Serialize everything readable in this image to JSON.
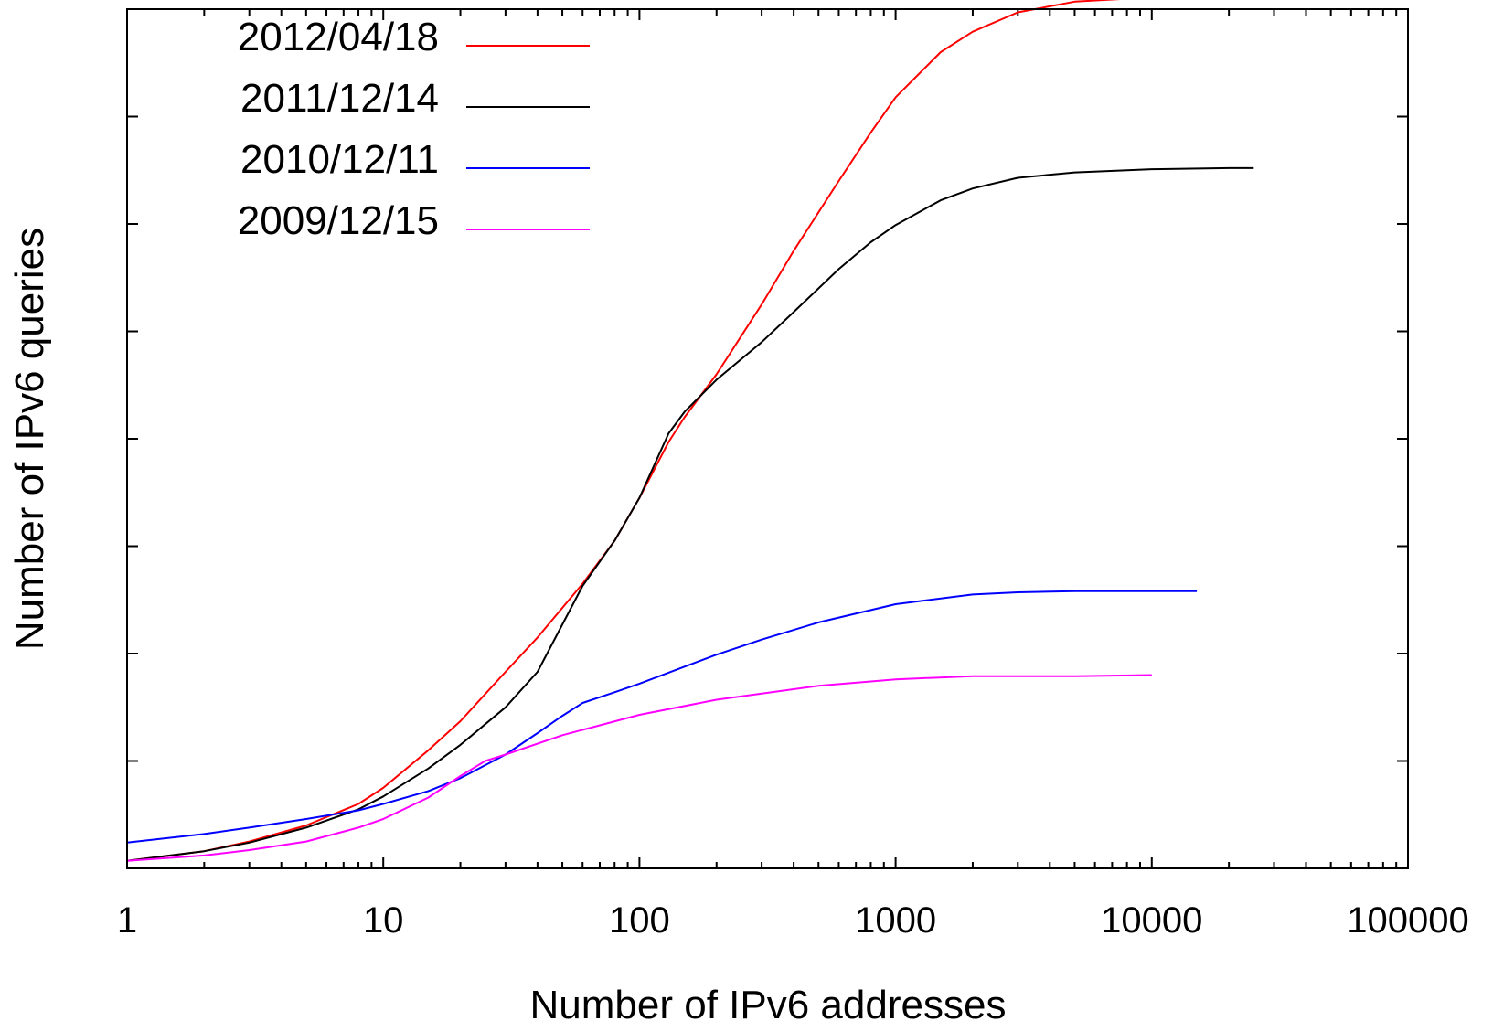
{
  "chart_data": {
    "type": "line",
    "title": "",
    "xlabel": "Number of IPv6 addresses",
    "ylabel": "Number of IPv6 queries",
    "x_scale": "log",
    "xlim": [
      1,
      100000
    ],
    "x_ticks": [
      1,
      10,
      100,
      1000,
      10000,
      100000
    ],
    "x_tick_labels": [
      "1",
      "10",
      "100",
      "1000",
      "10000",
      "100000"
    ],
    "ylim": [
      0,
      8
    ],
    "y_ticks": [
      0,
      1,
      2,
      3,
      4,
      5,
      6,
      7,
      8
    ],
    "y_tick_labels_shown": false,
    "grid": false,
    "legend_position": "top-left",
    "series": [
      {
        "name": "2012/04/18",
        "color": "#ff0000",
        "x": [
          1,
          2,
          3,
          5,
          8,
          10,
          15,
          20,
          30,
          40,
          60,
          80,
          100,
          130,
          150,
          200,
          300,
          400,
          600,
          800,
          1000,
          1500,
          2000,
          3000,
          5000,
          10000,
          20000,
          30000
        ],
        "y": [
          0.07,
          0.16,
          0.25,
          0.4,
          0.6,
          0.75,
          1.1,
          1.37,
          1.83,
          2.15,
          2.65,
          3.05,
          3.45,
          3.97,
          4.2,
          4.6,
          5.25,
          5.75,
          6.4,
          6.85,
          7.18,
          7.6,
          7.79,
          7.97,
          8.07,
          8.11,
          8.12,
          8.12
        ]
      },
      {
        "name": "2011/12/14",
        "color": "#000000",
        "x": [
          1,
          2,
          3,
          5,
          8,
          10,
          15,
          20,
          30,
          40,
          60,
          80,
          100,
          130,
          150,
          200,
          300,
          400,
          600,
          800,
          1000,
          1500,
          2000,
          3000,
          5000,
          10000,
          20000,
          25000
        ],
        "y": [
          0.07,
          0.16,
          0.24,
          0.38,
          0.55,
          0.67,
          0.93,
          1.15,
          1.5,
          1.83,
          2.63,
          3.05,
          3.45,
          4.05,
          4.25,
          4.55,
          4.9,
          5.18,
          5.58,
          5.83,
          5.99,
          6.22,
          6.33,
          6.43,
          6.48,
          6.51,
          6.52,
          6.52
        ]
      },
      {
        "name": "2010/12/11",
        "color": "#0000ff",
        "x": [
          1,
          2,
          3,
          5,
          8,
          10,
          15,
          20,
          30,
          40,
          50,
          60,
          80,
          100,
          200,
          300,
          500,
          1000,
          2000,
          3000,
          5000,
          10000,
          15000
        ],
        "y": [
          0.24,
          0.32,
          0.38,
          0.46,
          0.54,
          0.6,
          0.72,
          0.84,
          1.06,
          1.26,
          1.42,
          1.54,
          1.64,
          1.72,
          1.99,
          2.13,
          2.29,
          2.46,
          2.55,
          2.57,
          2.58,
          2.58,
          2.58
        ]
      },
      {
        "name": "2009/12/15",
        "color": "#ff00ff",
        "x": [
          1,
          2,
          3,
          5,
          8,
          10,
          15,
          20,
          25,
          30,
          50,
          100,
          200,
          500,
          1000,
          2000,
          3000,
          5000,
          10000
        ],
        "y": [
          0.07,
          0.12,
          0.17,
          0.25,
          0.38,
          0.46,
          0.66,
          0.86,
          1.0,
          1.06,
          1.24,
          1.43,
          1.57,
          1.7,
          1.76,
          1.79,
          1.79,
          1.79,
          1.8
        ]
      }
    ]
  }
}
